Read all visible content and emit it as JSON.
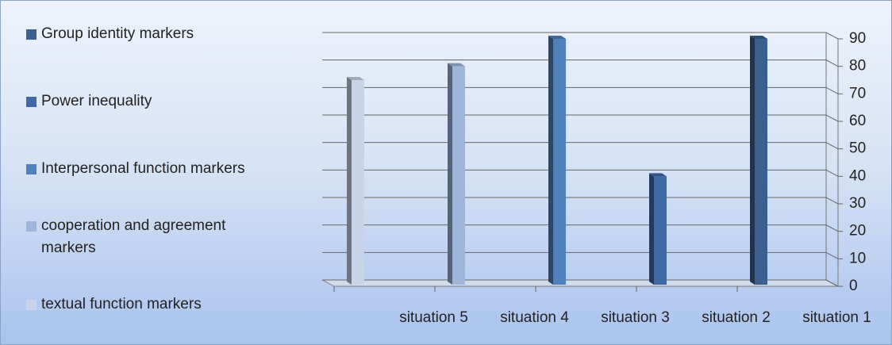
{
  "chart_data": {
    "type": "bar",
    "categories": [
      "situation 5",
      "situation 4",
      "situation 3",
      "situation 2",
      "situation 1"
    ],
    "series": [
      {
        "name": "Group identity markers",
        "color": "#3b5f8e",
        "values": [
          null,
          null,
          null,
          null,
          90
        ]
      },
      {
        "name": "Power inequality",
        "color": "#3f6aa6",
        "values": [
          null,
          null,
          null,
          40,
          null
        ]
      },
      {
        "name": "Interpersonal function markers",
        "color": "#4f81bd",
        "values": [
          null,
          null,
          90,
          null,
          null
        ]
      },
      {
        "name": "cooperation and agreement markers",
        "color": "#9db6d9",
        "values": [
          null,
          80,
          null,
          null,
          null
        ]
      },
      {
        "name": "textual function markers",
        "color": "#c8d4e8",
        "values": [
          75,
          null,
          null,
          null,
          null
        ]
      }
    ],
    "ylim": [
      0,
      90
    ],
    "yticks": [
      0,
      10,
      20,
      30,
      40,
      50,
      60,
      70,
      80,
      90
    ],
    "grid": true,
    "legend": "left"
  }
}
